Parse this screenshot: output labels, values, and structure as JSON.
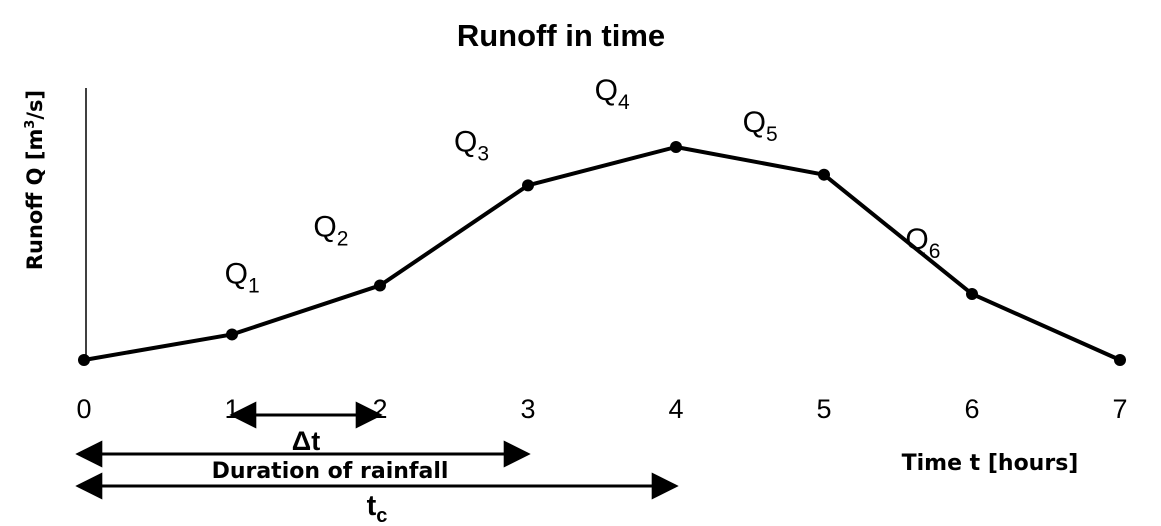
{
  "chart_data": {
    "type": "line",
    "title": "Runoff in time",
    "xlabel": "Time t [hours]",
    "ylabel_main": "Runoff Q [m",
    "ylabel_sup": "3",
    "ylabel_end": "/s]",
    "x": [
      0,
      1,
      2,
      3,
      4,
      5,
      6,
      7
    ],
    "y": [
      0,
      0.12,
      0.35,
      0.82,
      1.0,
      0.87,
      0.31,
      0
    ],
    "xlim": [
      0,
      7
    ],
    "ylim": [
      0,
      1.25
    ],
    "xticks": [
      "0",
      "1",
      "2",
      "3",
      "4",
      "5",
      "6",
      "7"
    ],
    "grid": false,
    "segment_labels": [
      {
        "base": "Q",
        "sub": "1",
        "x": 0.95,
        "y": 0.36
      },
      {
        "base": "Q",
        "sub": "2",
        "x": 1.55,
        "y": 0.58
      },
      {
        "base": "Q",
        "sub": "3",
        "x": 2.5,
        "y": 0.98
      },
      {
        "base": "Q",
        "sub": "4",
        "x": 3.45,
        "y": 1.22
      },
      {
        "base": "Q",
        "sub": "5",
        "x": 4.45,
        "y": 1.07
      },
      {
        "base": "Q",
        "sub": "6",
        "x": 5.55,
        "y": 0.52
      }
    ],
    "spans": [
      {
        "label": "Δt",
        "sub": "",
        "from": 1,
        "to": 2
      },
      {
        "label": "Duration of rainfall",
        "sub": "",
        "from": 0,
        "to": 3
      },
      {
        "label": "t",
        "sub": "c",
        "from": 0,
        "to": 4
      }
    ]
  }
}
